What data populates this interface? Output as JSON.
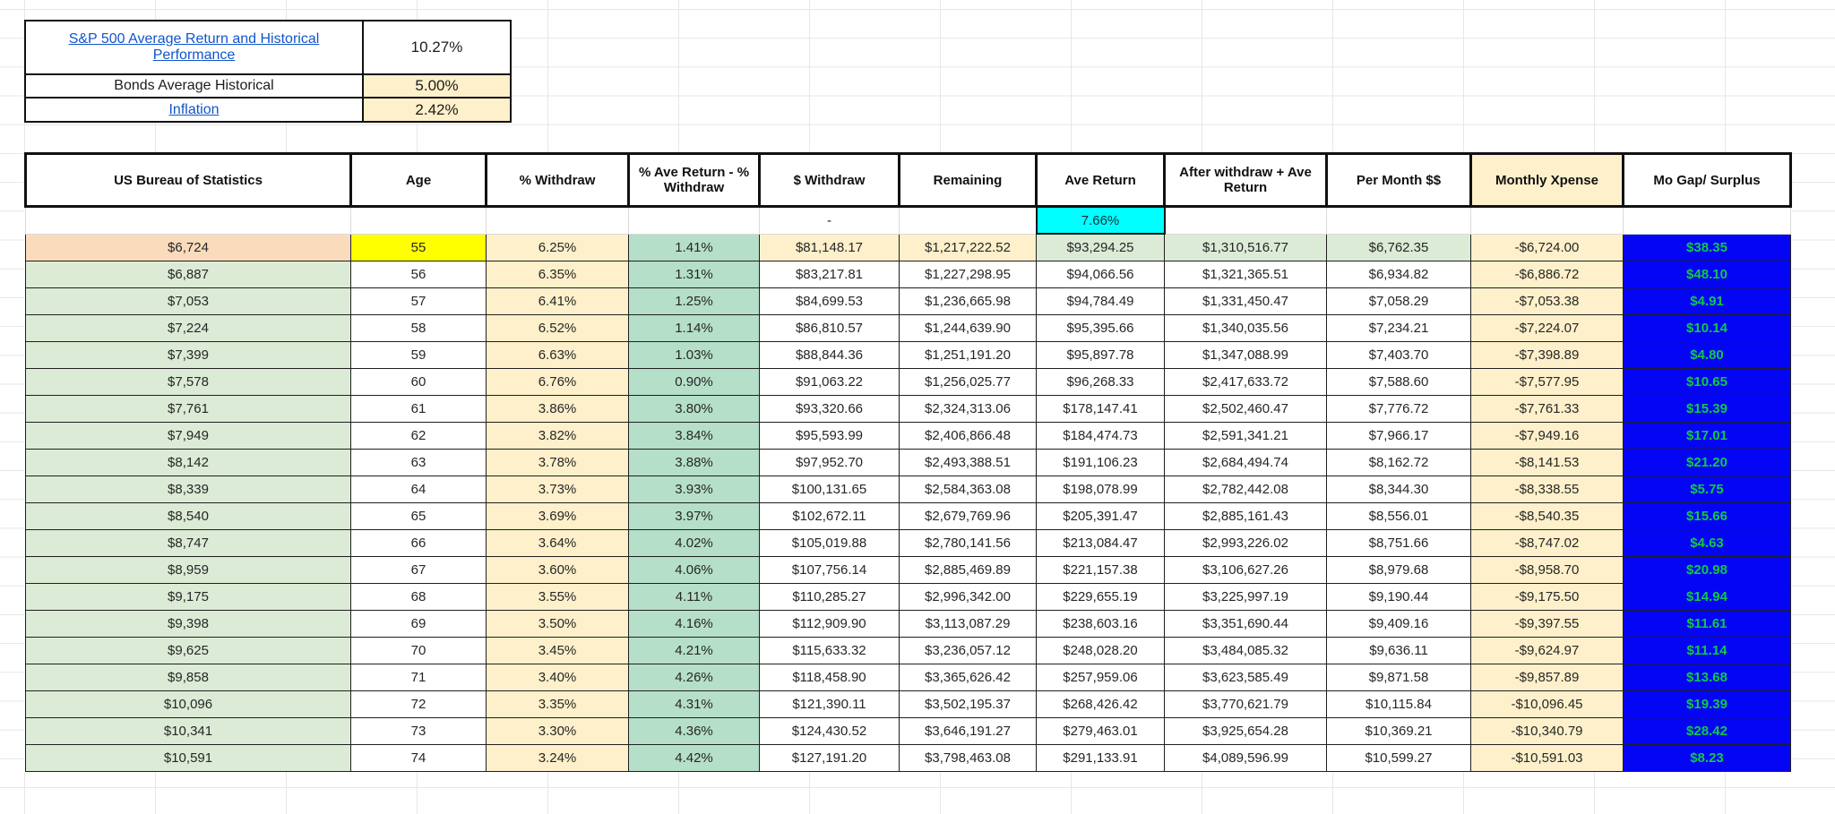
{
  "info_box": {
    "rows": [
      {
        "label": "S&P 500 Average Return and Historical Performance",
        "value": "10.27%",
        "is_link": true,
        "value_bg": "#ffffff"
      },
      {
        "label": "Bonds Average Historical",
        "value": "5.00%",
        "is_link": false,
        "value_bg": "#fdf0ca"
      },
      {
        "label": "Inflation",
        "value": "2.42%",
        "is_link": true,
        "value_bg": "#fdf0ca"
      }
    ]
  },
  "table": {
    "headers": [
      "US Bureau of Statistics",
      "Age",
      "% Withdraw",
      "% Ave Return - % Withdraw",
      "$ Withdraw",
      "Remaining",
      "Ave Return",
      "After withdraw + Ave Return",
      "Per Month $$",
      "Monthly Xpense",
      "Mo Gap/ Surplus"
    ],
    "subrow": {
      "withdraw_placeholder": "-",
      "ave_return_rate": "7.66%"
    },
    "rows": [
      [
        "$6,724",
        "55",
        "6.25%",
        "1.41%",
        "$81,148.17",
        "$1,217,222.52",
        "$93,294.25",
        "$1,310,516.77",
        "$6,762.35",
        "-$6,724.00",
        "$38.35"
      ],
      [
        "$6,887",
        "56",
        "6.35%",
        "1.31%",
        "$83,217.81",
        "$1,227,298.95",
        "$94,066.56",
        "$1,321,365.51",
        "$6,934.82",
        "-$6,886.72",
        "$48.10"
      ],
      [
        "$7,053",
        "57",
        "6.41%",
        "1.25%",
        "$84,699.53",
        "$1,236,665.98",
        "$94,784.49",
        "$1,331,450.47",
        "$7,058.29",
        "-$7,053.38",
        "$4.91"
      ],
      [
        "$7,224",
        "58",
        "6.52%",
        "1.14%",
        "$86,810.57",
        "$1,244,639.90",
        "$95,395.66",
        "$1,340,035.56",
        "$7,234.21",
        "-$7,224.07",
        "$10.14"
      ],
      [
        "$7,399",
        "59",
        "6.63%",
        "1.03%",
        "$88,844.36",
        "$1,251,191.20",
        "$95,897.78",
        "$1,347,088.99",
        "$7,403.70",
        "-$7,398.89",
        "$4.80"
      ],
      [
        "$7,578",
        "60",
        "6.76%",
        "0.90%",
        "$91,063.22",
        "$1,256,025.77",
        "$96,268.33",
        "$2,417,633.72",
        "$7,588.60",
        "-$7,577.95",
        "$10.65"
      ],
      [
        "$7,761",
        "61",
        "3.86%",
        "3.80%",
        "$93,320.66",
        "$2,324,313.06",
        "$178,147.41",
        "$2,502,460.47",
        "$7,776.72",
        "-$7,761.33",
        "$15.39"
      ],
      [
        "$7,949",
        "62",
        "3.82%",
        "3.84%",
        "$95,593.99",
        "$2,406,866.48",
        "$184,474.73",
        "$2,591,341.21",
        "$7,966.17",
        "-$7,949.16",
        "$17.01"
      ],
      [
        "$8,142",
        "63",
        "3.78%",
        "3.88%",
        "$97,952.70",
        "$2,493,388.51",
        "$191,106.23",
        "$2,684,494.74",
        "$8,162.72",
        "-$8,141.53",
        "$21.20"
      ],
      [
        "$8,339",
        "64",
        "3.73%",
        "3.93%",
        "$100,131.65",
        "$2,584,363.08",
        "$198,078.99",
        "$2,782,442.08",
        "$8,344.30",
        "-$8,338.55",
        "$5.75"
      ],
      [
        "$8,540",
        "65",
        "3.69%",
        "3.97%",
        "$102,672.11",
        "$2,679,769.96",
        "$205,391.47",
        "$2,885,161.43",
        "$8,556.01",
        "-$8,540.35",
        "$15.66"
      ],
      [
        "$8,747",
        "66",
        "3.64%",
        "4.02%",
        "$105,019.88",
        "$2,780,141.56",
        "$213,084.47",
        "$2,993,226.02",
        "$8,751.66",
        "-$8,747.02",
        "$4.63"
      ],
      [
        "$8,959",
        "67",
        "3.60%",
        "4.06%",
        "$107,756.14",
        "$2,885,469.89",
        "$221,157.38",
        "$3,106,627.26",
        "$8,979.68",
        "-$8,958.70",
        "$20.98"
      ],
      [
        "$9,175",
        "68",
        "3.55%",
        "4.11%",
        "$110,285.27",
        "$2,996,342.00",
        "$229,655.19",
        "$3,225,997.19",
        "$9,190.44",
        "-$9,175.50",
        "$14.94"
      ],
      [
        "$9,398",
        "69",
        "3.50%",
        "4.16%",
        "$112,909.90",
        "$3,113,087.29",
        "$238,603.16",
        "$3,351,690.44",
        "$9,409.16",
        "-$9,397.55",
        "$11.61"
      ],
      [
        "$9,625",
        "70",
        "3.45%",
        "4.21%",
        "$115,633.32",
        "$3,236,057.12",
        "$248,028.20",
        "$3,484,085.32",
        "$9,636.11",
        "-$9,624.97",
        "$11.14"
      ],
      [
        "$9,858",
        "71",
        "3.40%",
        "4.26%",
        "$118,458.90",
        "$3,365,626.42",
        "$257,959.06",
        "$3,623,585.49",
        "$9,871.58",
        "-$9,857.89",
        "$13.68"
      ],
      [
        "$10,096",
        "72",
        "3.35%",
        "4.31%",
        "$121,390.11",
        "$3,502,195.37",
        "$268,426.42",
        "$3,770,621.79",
        "$10,115.84",
        "-$10,096.45",
        "$19.39"
      ],
      [
        "$10,341",
        "73",
        "3.30%",
        "4.36%",
        "$124,430.52",
        "$3,646,191.27",
        "$279,463.01",
        "$3,925,654.28",
        "$10,369.21",
        "-$10,340.79",
        "$28.42"
      ],
      [
        "$10,591",
        "74",
        "3.24%",
        "4.42%",
        "$127,191.20",
        "$3,798,463.08",
        "$291,133.91",
        "$4,089,596.99",
        "$10,599.27",
        "-$10,591.03",
        "$8.23"
      ]
    ]
  },
  "colors": {
    "row_green": "#dcebd5",
    "mint_green": "#b5dfc8",
    "tan": "#fdf0ca",
    "peach": "#fadcbd",
    "yellow_highlight": "#ffff00",
    "cyan_highlight": "#00ffff",
    "gap_blue": "#0505f5",
    "gap_text_green": "#11c847",
    "link_blue": "#1155cc"
  }
}
